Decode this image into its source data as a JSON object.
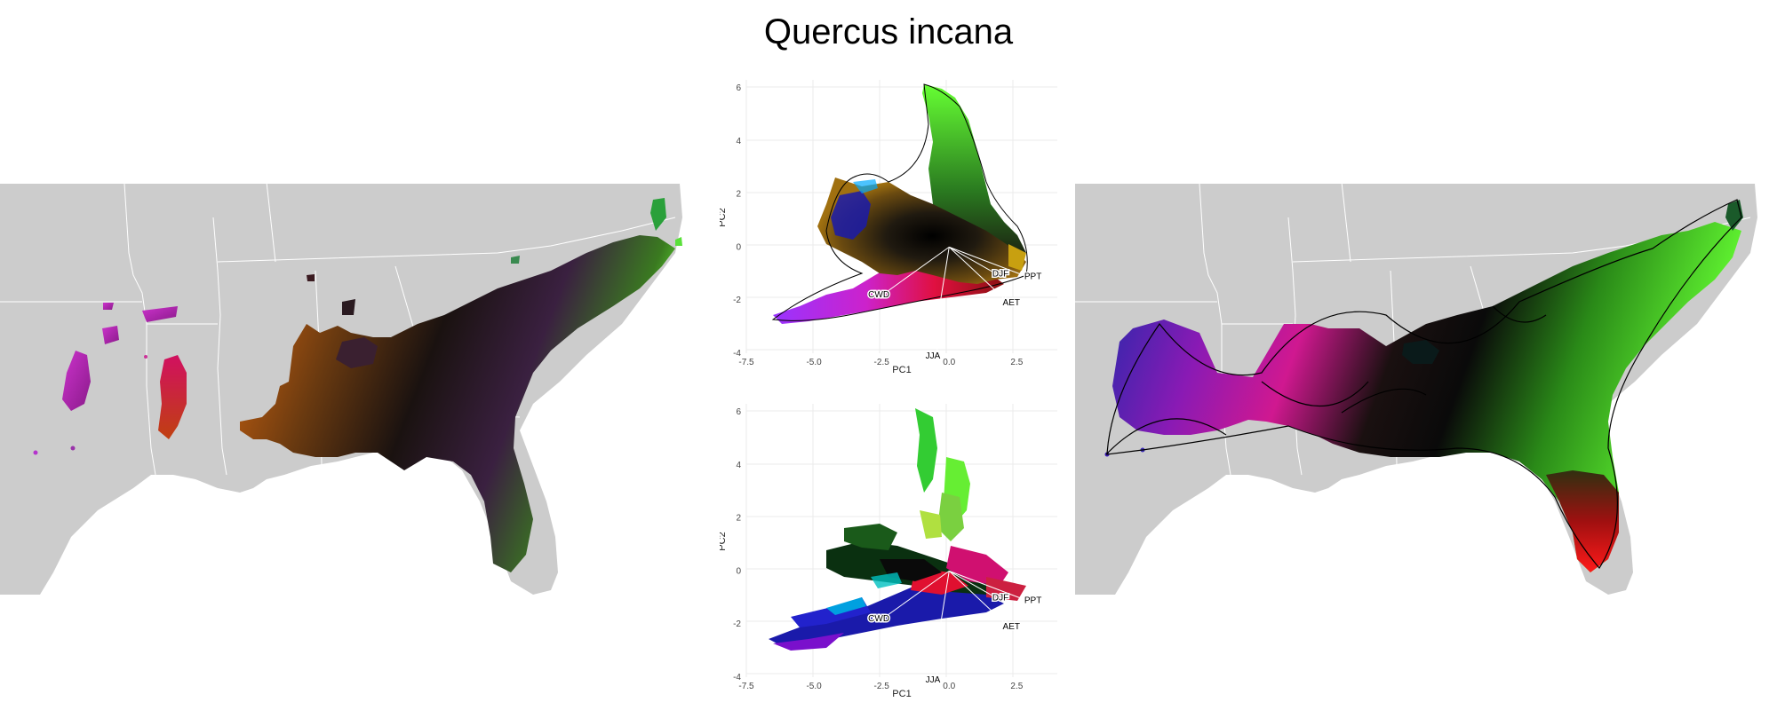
{
  "title": "Quercus incana",
  "maps": [
    {
      "name": "occurrence-colored map"
    },
    {
      "name": "hull-colored map"
    }
  ],
  "colors": {
    "land": "#cccccc",
    "state_border": "#ffffff",
    "water": "#ffffff"
  },
  "chart_data": [
    {
      "type": "scatter",
      "panel": "biplot-hull",
      "xlabel": "PC1",
      "ylabel": "PC2",
      "xlim": [
        -7.5,
        4
      ],
      "ylim": [
        -4,
        6.3
      ],
      "xticks": [
        "-7.5",
        "-5.0",
        "-2.5",
        "0.0",
        "2.5"
      ],
      "yticks": [
        "-4",
        "-2",
        "0",
        "2",
        "4",
        "6"
      ],
      "grid": true,
      "vectors": [
        {
          "label": "CWD",
          "x": -2.6,
          "y": -1.9
        },
        {
          "label": "JJA",
          "x": -0.6,
          "y": -3.8
        },
        {
          "label": "AET",
          "x": 2.3,
          "y": -2.2
        },
        {
          "label": "DJF",
          "x": 1.9,
          "y": -1.1
        },
        {
          "label": "PPT",
          "x": 3.1,
          "y": -1.2
        }
      ]
    },
    {
      "type": "scatter",
      "panel": "biplot-points",
      "xlabel": "PC1",
      "ylabel": "PC2",
      "xlim": [
        -7.5,
        4
      ],
      "ylim": [
        -4,
        6.3
      ],
      "xticks": [
        "-7.5",
        "-5.0",
        "-2.5",
        "0.0",
        "2.5"
      ],
      "yticks": [
        "-4",
        "-2",
        "0",
        "2",
        "4",
        "6"
      ],
      "grid": true,
      "vectors": [
        {
          "label": "CWD",
          "x": -2.6,
          "y": -1.9
        },
        {
          "label": "JJA",
          "x": -0.6,
          "y": -3.8
        },
        {
          "label": "AET",
          "x": 2.3,
          "y": -2.2
        },
        {
          "label": "DJF",
          "x": 1.9,
          "y": -1.1
        },
        {
          "label": "PPT",
          "x": 3.1,
          "y": -1.2
        }
      ]
    }
  ]
}
